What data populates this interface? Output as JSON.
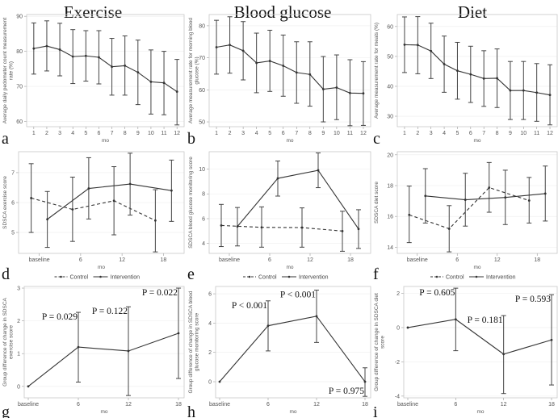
{
  "column_titles": [
    "Exercise",
    "Blood glucose",
    "Diet"
  ],
  "chart_data": [
    {
      "id": "a",
      "type": "line",
      "letter": "a",
      "xlabel": "mo",
      "ylabel": [
        "Average daily pedometer count measurement",
        "rate (%)"
      ],
      "categories": [
        "1",
        "2",
        "3",
        "4",
        "5",
        "6",
        "7",
        "8",
        "9",
        "10",
        "11",
        "12"
      ],
      "ylim": [
        58.5,
        90.5
      ],
      "yticks": [
        60,
        70,
        80,
        90
      ],
      "series": [
        {
          "name": "Measurement rate",
          "style": "solid",
          "values": [
            80.8,
            81.5,
            80.5,
            78.5,
            78.7,
            78.3,
            75.6,
            75.9,
            74.0,
            71.3,
            71.0,
            68.5
          ],
          "lower": [
            73.5,
            74.4,
            73.0,
            70.8,
            71.5,
            70.7,
            67.5,
            67.5,
            64.8,
            62.1,
            61.9,
            59.0
          ],
          "upper": [
            88.1,
            88.7,
            88.0,
            86.2,
            85.9,
            85.9,
            83.7,
            84.4,
            83.2,
            80.4,
            80.0,
            77.7
          ]
        }
      ]
    },
    {
      "id": "b",
      "type": "line",
      "letter": "b",
      "xlabel": "mo",
      "ylabel": [
        "Average measurement rate for morning blood",
        "glucose (%)"
      ],
      "categories": [
        "1",
        "2",
        "3",
        "4",
        "5",
        "6",
        "7",
        "8",
        "9",
        "10",
        "11",
        "12"
      ],
      "ylim": [
        48.5,
        83.5
      ],
      "yticks": [
        50,
        60,
        70,
        80
      ],
      "series": [
        {
          "name": "Measurement rate",
          "style": "solid",
          "values": [
            73.3,
            74.0,
            72.2,
            68.4,
            69.0,
            67.5,
            65.4,
            64.8,
            60.2,
            60.7,
            59.0,
            58.9
          ],
          "lower": [
            64.9,
            65.2,
            63.1,
            59.1,
            59.5,
            58.0,
            55.8,
            54.9,
            50.0,
            50.7,
            48.8,
            48.9
          ],
          "upper": [
            81.7,
            82.8,
            81.3,
            77.7,
            78.6,
            77.1,
            75.0,
            75.0,
            70.4,
            70.9,
            69.4,
            68.8
          ]
        }
      ]
    },
    {
      "id": "c",
      "type": "line",
      "letter": "c",
      "xlabel": "mo",
      "ylabel": [
        "Average measurement rate for meals (%)"
      ],
      "categories": [
        "1",
        "2",
        "3",
        "4",
        "5",
        "6",
        "7",
        "8",
        "9",
        "10",
        "11",
        "12"
      ],
      "ylim": [
        26.5,
        64
      ],
      "yticks": [
        30,
        40,
        50,
        60
      ],
      "series": [
        {
          "name": "Measurement rate",
          "style": "solid",
          "values": [
            53.9,
            53.8,
            51.8,
            47.4,
            45.2,
            44.0,
            42.6,
            42.7,
            38.6,
            38.6,
            37.9,
            37.1
          ],
          "lower": [
            44.6,
            44.2,
            42.6,
            38.0,
            35.7,
            34.6,
            33.3,
            32.9,
            28.9,
            28.9,
            28.3,
            27.1
          ],
          "upper": [
            63.2,
            63.3,
            61.1,
            56.8,
            54.7,
            53.4,
            51.9,
            52.5,
            48.3,
            48.3,
            47.6,
            47.2
          ]
        }
      ]
    },
    {
      "id": "d",
      "type": "line",
      "letter": "d",
      "xlabel": "mo",
      "ylabel": [
        "SDSCA exercise score"
      ],
      "categories": [
        "baseline",
        "6",
        "12",
        "18"
      ],
      "ylim": [
        4.3,
        7.7
      ],
      "yticks": [
        5,
        6,
        7
      ],
      "legend": [
        "Control",
        "Intervention"
      ],
      "series": [
        {
          "name": "Control",
          "style": "dashed",
          "values": [
            6.15,
            5.77,
            6.06,
            5.4
          ],
          "lower": [
            5.0,
            4.7,
            4.92,
            4.35
          ],
          "upper": [
            7.3,
            6.85,
            7.2,
            6.43
          ]
        },
        {
          "name": "Intervention",
          "style": "solid",
          "values": [
            5.44,
            6.47,
            6.62,
            6.4
          ],
          "lower": [
            4.5,
            5.45,
            5.58,
            5.37
          ],
          "upper": [
            6.37,
            7.5,
            7.65,
            7.42
          ]
        }
      ]
    },
    {
      "id": "e",
      "type": "line",
      "letter": "e",
      "xlabel": "mo",
      "ylabel": [
        "SDSCA blood glucose monitoring score"
      ],
      "categories": [
        "baseline",
        "6",
        "12",
        "18"
      ],
      "ylim": [
        3.2,
        11.4
      ],
      "yticks": [
        4,
        6,
        8,
        10
      ],
      "legend": [
        "Control",
        "Intervention"
      ],
      "series": [
        {
          "name": "Control",
          "style": "dashed",
          "values": [
            5.45,
            5.3,
            5.28,
            5.0
          ],
          "lower": [
            3.75,
            3.7,
            3.7,
            3.37
          ],
          "upper": [
            7.15,
            6.95,
            6.87,
            6.6
          ]
        },
        {
          "name": "Intervention",
          "style": "solid",
          "values": [
            5.37,
            9.25,
            9.9,
            5.17
          ],
          "lower": [
            3.8,
            7.82,
            8.5,
            3.6
          ],
          "upper": [
            6.9,
            10.65,
            11.3,
            6.72
          ]
        }
      ]
    },
    {
      "id": "f",
      "type": "line",
      "letter": "f",
      "xlabel": "mo",
      "ylabel": [
        "SDSCA diet score"
      ],
      "categories": [
        "baseline",
        "6",
        "12",
        "18"
      ],
      "ylim": [
        13.6,
        20.2
      ],
      "yticks": [
        14,
        16,
        18,
        20
      ],
      "legend": [
        "Control",
        "Intervention"
      ],
      "series": [
        {
          "name": "Control",
          "style": "dashed",
          "values": [
            16.1,
            15.2,
            17.87,
            17.03
          ],
          "lower": [
            14.3,
            13.7,
            16.27,
            15.57
          ],
          "upper": [
            17.97,
            16.7,
            19.5,
            18.53
          ]
        },
        {
          "name": "Intervention",
          "style": "solid",
          "values": [
            17.33,
            17.08,
            17.23,
            17.48
          ],
          "lower": [
            15.57,
            15.37,
            15.47,
            15.7
          ],
          "upper": [
            19.1,
            18.8,
            19.0,
            19.27
          ]
        }
      ]
    },
    {
      "id": "g",
      "type": "line",
      "letter": "g",
      "xlabel": "mo",
      "ylabel": [
        "Group difference of change in SDSCA",
        "exercise score"
      ],
      "categories": [
        "baseline",
        "6",
        "12",
        "18"
      ],
      "ylim": [
        -0.35,
        3.05
      ],
      "yticks": [
        0,
        1,
        2,
        3
      ],
      "series": [
        {
          "name": "Group difference",
          "style": "solid",
          "values": [
            0,
            1.2,
            1.08,
            1.62
          ],
          "lower": [
            null,
            0.13,
            -0.28,
            0.24
          ],
          "upper": [
            null,
            2.26,
            2.43,
            3.0
          ]
        }
      ],
      "p_labels": [
        null,
        {
          "text": "P = 0.029",
          "place": "above"
        },
        {
          "text": "P = 0.122",
          "place": "above"
        },
        {
          "text": "P = 0.022",
          "place": "above"
        }
      ]
    },
    {
      "id": "h",
      "type": "line",
      "letter": "h",
      "xlabel": "mo",
      "ylabel": [
        "Group difference of change in SDSCA blood",
        "glucose monitoring score"
      ],
      "categories": [
        "baseline",
        "6",
        "12",
        "18"
      ],
      "ylim": [
        -1.1,
        6.5
      ],
      "yticks": [
        0,
        2,
        4,
        6
      ],
      "series": [
        {
          "name": "Group difference",
          "style": "solid",
          "values": [
            0,
            3.82,
            4.47,
            0
          ],
          "lower": [
            null,
            2.1,
            2.68,
            -1.0
          ],
          "upper": [
            null,
            5.52,
            6.25,
            0.95
          ]
        }
      ],
      "p_labels": [
        null,
        {
          "text": "P < 0.001",
          "place": "above"
        },
        {
          "text": "P < 0.001",
          "place": "above"
        },
        {
          "text": "P = 0.975",
          "place": "below"
        }
      ]
    },
    {
      "id": "i",
      "type": "line",
      "letter": "i",
      "xlabel": "mo",
      "ylabel": [
        "Group difference of change in SDSCA diet",
        "score"
      ],
      "categories": [
        "baseline",
        "6",
        "12",
        "18"
      ],
      "ylim": [
        -4.1,
        2.4
      ],
      "yticks": [
        -4,
        -2,
        0,
        2
      ],
      "series": [
        {
          "name": "Group difference",
          "style": "solid",
          "values": [
            0,
            0.48,
            -1.55,
            -0.72
          ],
          "lower": [
            null,
            -1.35,
            -3.85,
            -3.35
          ],
          "upper": [
            null,
            2.3,
            0.7,
            1.92
          ]
        }
      ],
      "p_labels": [
        null,
        {
          "text": "P = 0.605",
          "place": "above"
        },
        {
          "text": "P = 0.181",
          "place": "above"
        },
        {
          "text": "P = 0.593",
          "place": "above"
        }
      ]
    }
  ]
}
